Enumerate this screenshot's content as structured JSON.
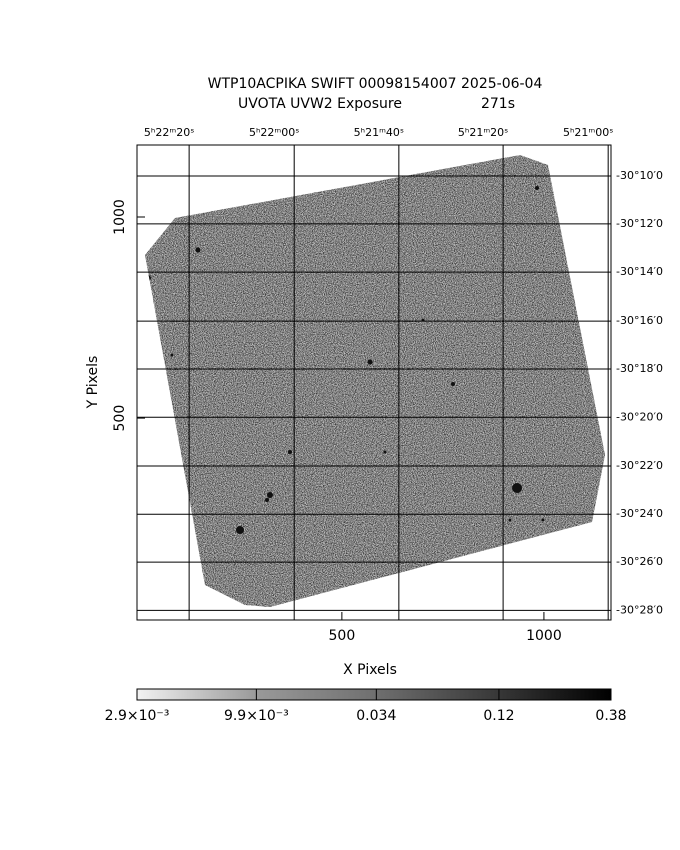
{
  "chart_data": {
    "type": "image",
    "title": "WTP10ACPIKA SWIFT 00098154007 2025-06-04",
    "subtitle": "UVOTA UVW2 Exposure",
    "exposure": "271s",
    "xlabel": "X Pixels",
    "ylabel": "Y Pixels",
    "xlim": [
      -7,
      1166
    ],
    "ylim": [
      -2,
      1179
    ],
    "xticks": [
      500,
      1000
    ],
    "yticks": [
      500,
      1000
    ],
    "x2ticks": [
      {
        "value": 122,
        "label": "5ʰ22ᵐ20ˢ"
      },
      {
        "value": 382,
        "label": "5ʰ22ᵐ00ˢ"
      },
      {
        "value": 641,
        "label": "5ʰ21ᵐ40ˢ"
      },
      {
        "value": 899,
        "label": "5ʰ21ᵐ20ˢ"
      },
      {
        "value": 1159,
        "label": "5ʰ21ᵐ00ˢ"
      }
    ],
    "y2ticks": [
      {
        "value": 1102,
        "label": "-30°10′0"
      },
      {
        "value": 983,
        "label": "-30°12′0"
      },
      {
        "value": 863,
        "label": "-30°14′0"
      },
      {
        "value": 741,
        "label": "-30°16′0"
      },
      {
        "value": 622,
        "label": "-30°18′0"
      },
      {
        "value": 502,
        "label": "-30°20′0"
      },
      {
        "value": 381,
        "label": "-30°22′0"
      },
      {
        "value": 261,
        "label": "-30°24′0"
      },
      {
        "value": 142,
        "label": "-30°26′0"
      },
      {
        "value": 22,
        "label": "-30°28′0"
      }
    ],
    "grid": true,
    "colorbar": {
      "lim": [
        0.0029,
        0.38
      ],
      "log": true,
      "ticks": [
        {
          "value": 0.0029,
          "label": "2.9×10⁻³"
        },
        {
          "value": 0.0099,
          "label": "9.9×10⁻³"
        },
        0.034,
        0.12,
        0.38
      ]
    }
  }
}
